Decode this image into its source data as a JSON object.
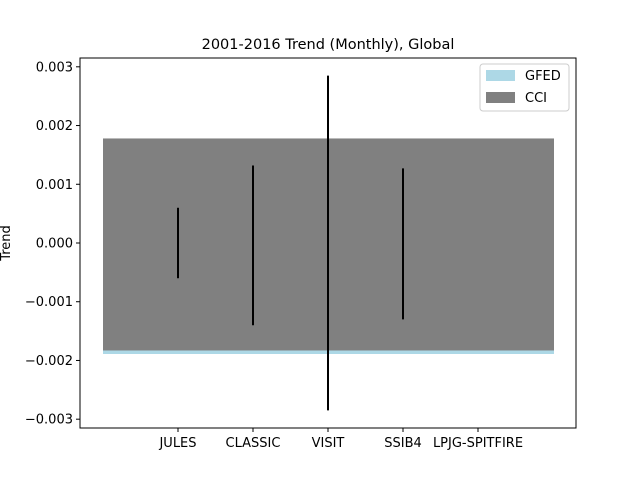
{
  "chart_data": {
    "type": "bar",
    "title": "2001-2016 Trend (Monthly), Global",
    "ylabel": "Trend",
    "xlabel": "",
    "ylim": [
      -0.00315,
      0.00315
    ],
    "yticks": [
      -0.003,
      -0.002,
      -0.001,
      0.0,
      0.001,
      0.002,
      0.003
    ],
    "ytick_labels": [
      "−0.003",
      "−0.002",
      "−0.001",
      "0.000",
      "0.001",
      "0.002",
      "0.003"
    ],
    "categories": [
      "JULES",
      "CLASSIC",
      "VISIT",
      "SSIB4",
      "LPJG-SPITFIRE"
    ],
    "bands": [
      {
        "name": "GFED",
        "lower": -0.00189,
        "upper": 0.00132,
        "color": "#add8e6"
      },
      {
        "name": "CCI",
        "lower": -0.00183,
        "upper": 0.00178,
        "color": "#808080"
      }
    ],
    "error_bars": [
      {
        "category": "JULES",
        "low": -0.0006,
        "high": 0.0006
      },
      {
        "category": "CLASSIC",
        "low": -0.0014,
        "high": 0.00132
      },
      {
        "category": "VISIT",
        "low": -0.00285,
        "high": 0.00285
      },
      {
        "category": "SSIB4",
        "low": -0.0013,
        "high": 0.00127
      }
    ],
    "legend": {
      "placement": "top-right",
      "entries": [
        "GFED",
        "CCI"
      ]
    },
    "grid": false
  }
}
